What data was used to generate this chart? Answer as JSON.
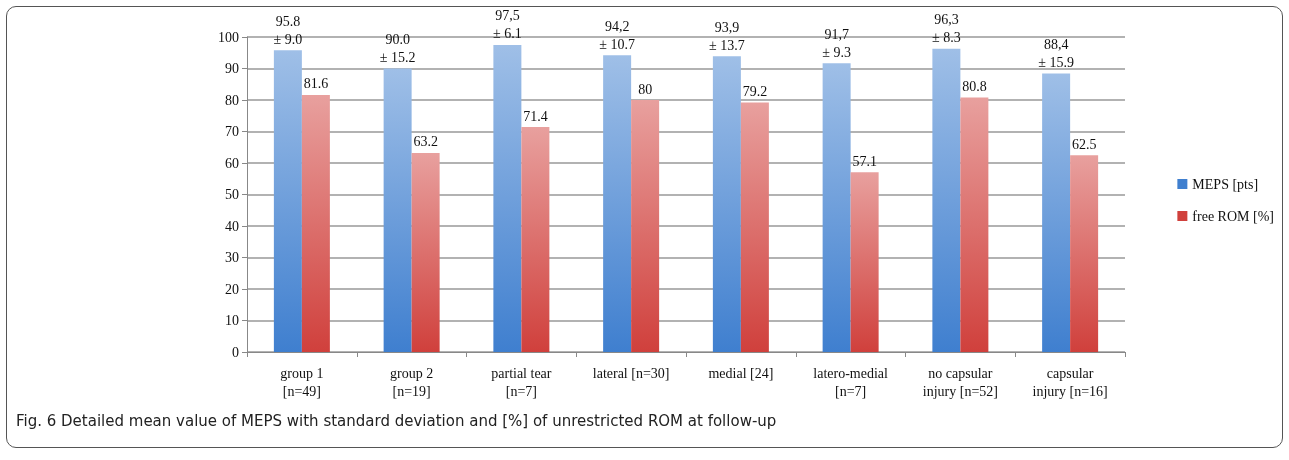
{
  "chart_data": {
    "type": "bar",
    "categories": [
      "group 1\n[n=49]",
      "group 2\n[n=19]",
      "partial tear\n[n=7]",
      "lateral [n=30]",
      "medial [24]",
      "latero-medial\n[n=7]",
      "no capsular\ninjury [n=52]",
      "capsular\ninjury [n=16]"
    ],
    "series": [
      {
        "name": "MEPS [pts]",
        "color": "#3f7fcf",
        "values": [
          95.8,
          90.0,
          97.5,
          94.2,
          93.9,
          91.7,
          96.3,
          88.4
        ],
        "value_labels": [
          "95.8\n± 9.0",
          "90.0\n± 15.2",
          "97,5\n± 6.1",
          "94,2\n± 10.7",
          "93,9\n± 13.7",
          "91,7\n± 9.3",
          "96,3\n± 8.3",
          "88,4\n± 15.9"
        ]
      },
      {
        "name": "free ROM [%]",
        "color": "#d0403c",
        "values": [
          81.6,
          63.2,
          71.4,
          80,
          79.2,
          57.1,
          80.8,
          62.5
        ],
        "value_labels": [
          "81.6",
          "63.2",
          "71.4",
          "80",
          "79.2",
          "57.1",
          "80.8",
          "62.5"
        ]
      }
    ],
    "ylim": [
      0,
      100
    ],
    "yticks": [
      0,
      10,
      20,
      30,
      40,
      50,
      60,
      70,
      80,
      90,
      100
    ],
    "grid": "y",
    "legend": "right",
    "annotations": [
      "Fig. 6 Detailed mean value of MEPS with standard deviation and [%] of unrestricted ROM at follow-up"
    ]
  }
}
